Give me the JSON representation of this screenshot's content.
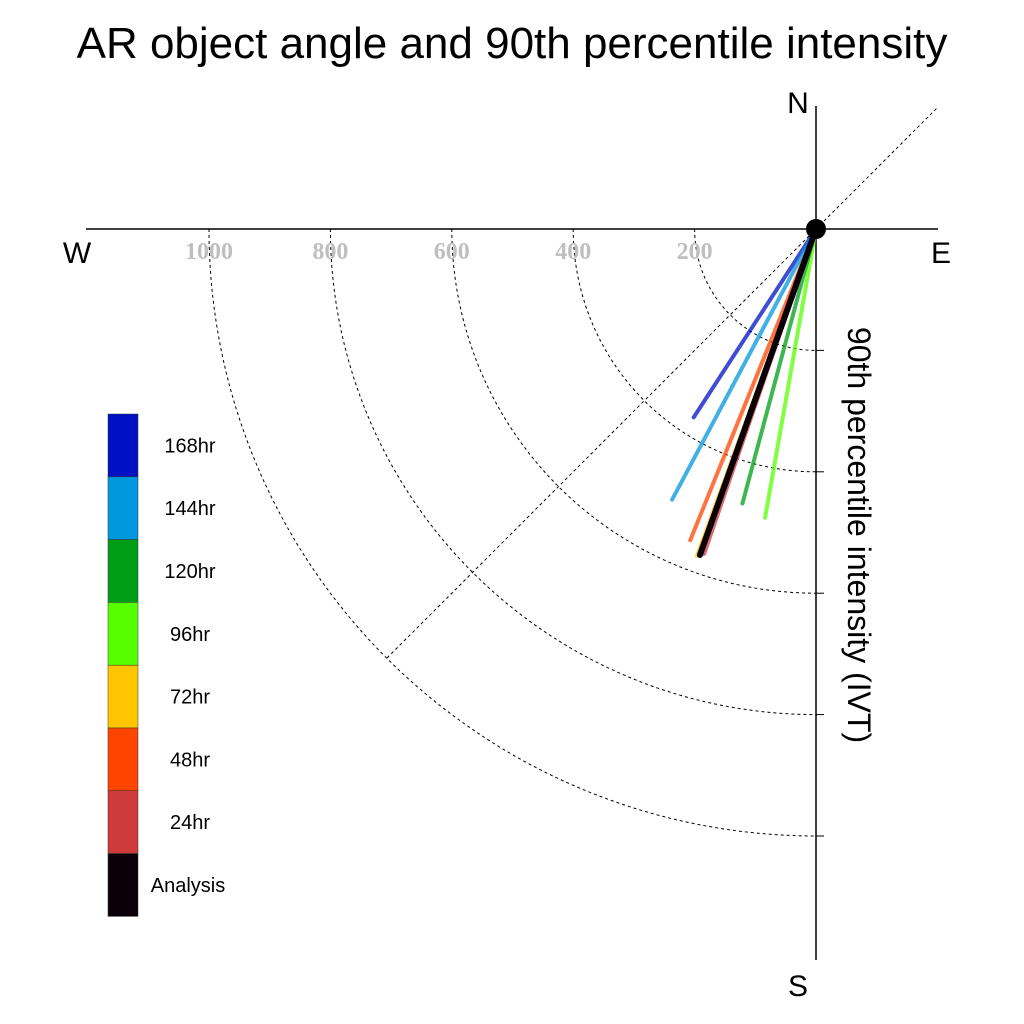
{
  "chart_data": {
    "type": "polar-vector",
    "title": "AR object angle and 90th percentile intensity",
    "ylabel": "90th percentile intensity (IVT)",
    "compass": {
      "north": "N",
      "south": "S",
      "east": "E",
      "west": "W"
    },
    "radial_ticks": [
      200,
      400,
      600,
      800,
      1000
    ],
    "radial_tick_labels": [
      "200",
      "400",
      "600",
      "800",
      "1000"
    ],
    "radial_max": 1000,
    "grid": true,
    "angle_convention": "degrees clockwise from north",
    "legend_position": "bottom-left",
    "series": [
      {
        "name": "168hr",
        "color": "#0011c4",
        "angle_deg": 213,
        "intensity": 370
      },
      {
        "name": "144hr",
        "color": "#0097dc",
        "angle_deg": 208,
        "intensity": 505
      },
      {
        "name": "120hr",
        "color": "#009e16",
        "angle_deg": 195,
        "intensity": 468
      },
      {
        "name": "96hr",
        "color": "#55ff00",
        "angle_deg": 190,
        "intensity": 483
      },
      {
        "name": "72hr",
        "color": "#ffc600",
        "angle_deg": 200,
        "intensity": 573
      },
      {
        "name": "48hr",
        "color": "#ff4400",
        "angle_deg": 202,
        "intensity": 553
      },
      {
        "name": "24hr",
        "color": "#cf3b3b",
        "angle_deg": 199,
        "intensity": 566
      },
      {
        "name": "Analysis",
        "color": "#0a0007",
        "angle_deg": 199.6,
        "intensity": 570
      }
    ]
  }
}
